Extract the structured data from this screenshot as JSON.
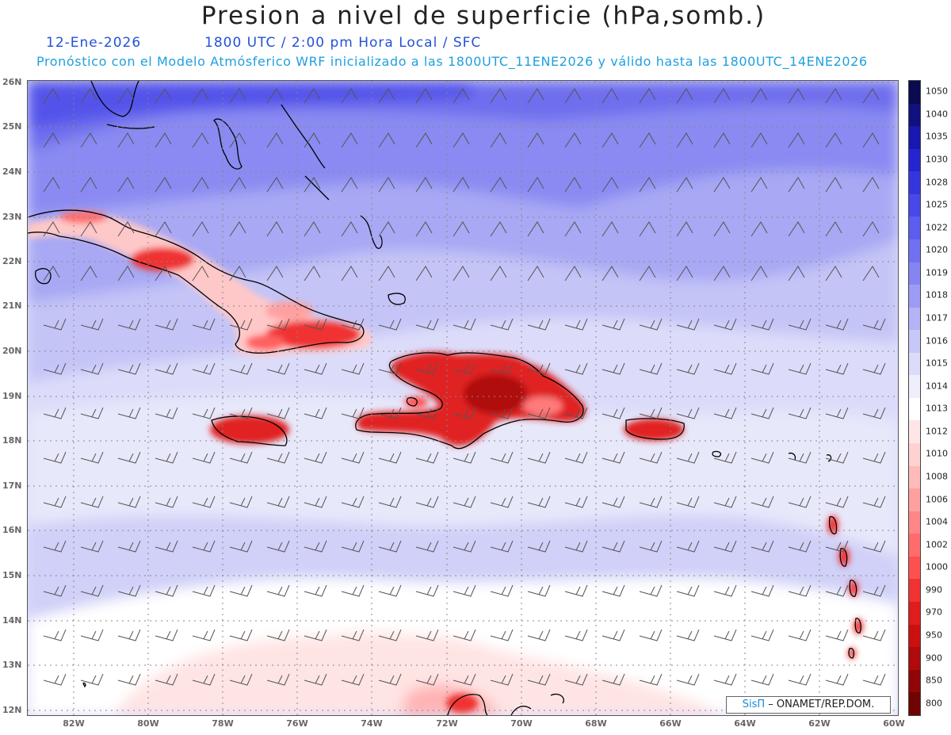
{
  "header": {
    "title": "Presion a nivel de superficie (hPa,somb.)",
    "date": "12-Ene-2026",
    "time_info": "1800 UTC / 2:00 pm Hora Local / SFC",
    "description": "Pronóstico con el Modelo Atmósferico WRF inicializado a las 1800UTC_11ENE2026 y válido hasta las  1800UTC_14ENE2026"
  },
  "axes": {
    "lat_labels": [
      "26N",
      "25N",
      "24N",
      "23N",
      "22N",
      "21N",
      "20N",
      "19N",
      "18N",
      "17N",
      "16N",
      "15N",
      "14N",
      "13N",
      "12N"
    ],
    "lon_labels": [
      "82W",
      "80W",
      "78W",
      "76W",
      "74W",
      "72W",
      "70W",
      "68W",
      "66W",
      "64W",
      "62W",
      "60W"
    ]
  },
  "colorbar": {
    "labels": [
      "1050",
      "1040",
      "1035",
      "1030",
      "1028",
      "1025",
      "1022",
      "1020",
      "1019",
      "1018",
      "1017",
      "1016",
      "1015",
      "1014",
      "1013",
      "1012",
      "1010",
      "1008",
      "1006",
      "1004",
      "1002",
      "1000",
      "990",
      "970",
      "950",
      "900",
      "850",
      "800"
    ],
    "colors": [
      "#0a0a50",
      "#101080",
      "#1818b0",
      "#2525d0",
      "#3535e0",
      "#4848e8",
      "#5c5cee",
      "#7070f0",
      "#8585f2",
      "#9c9cf4",
      "#b3b3f6",
      "#c8c8f8",
      "#dcdcfa",
      "#eeeefc",
      "#ffffff",
      "#ffe6e6",
      "#ffd2d2",
      "#ffbaba",
      "#ffa0a0",
      "#ff8686",
      "#ff6c6c",
      "#ff5050",
      "#f03232",
      "#e01c1c",
      "#cc1010",
      "#b00a0a",
      "#900606",
      "#700404"
    ]
  },
  "credit": {
    "brand": "SisΠ",
    "org": " – ONAMET/REP.DOM."
  }
}
